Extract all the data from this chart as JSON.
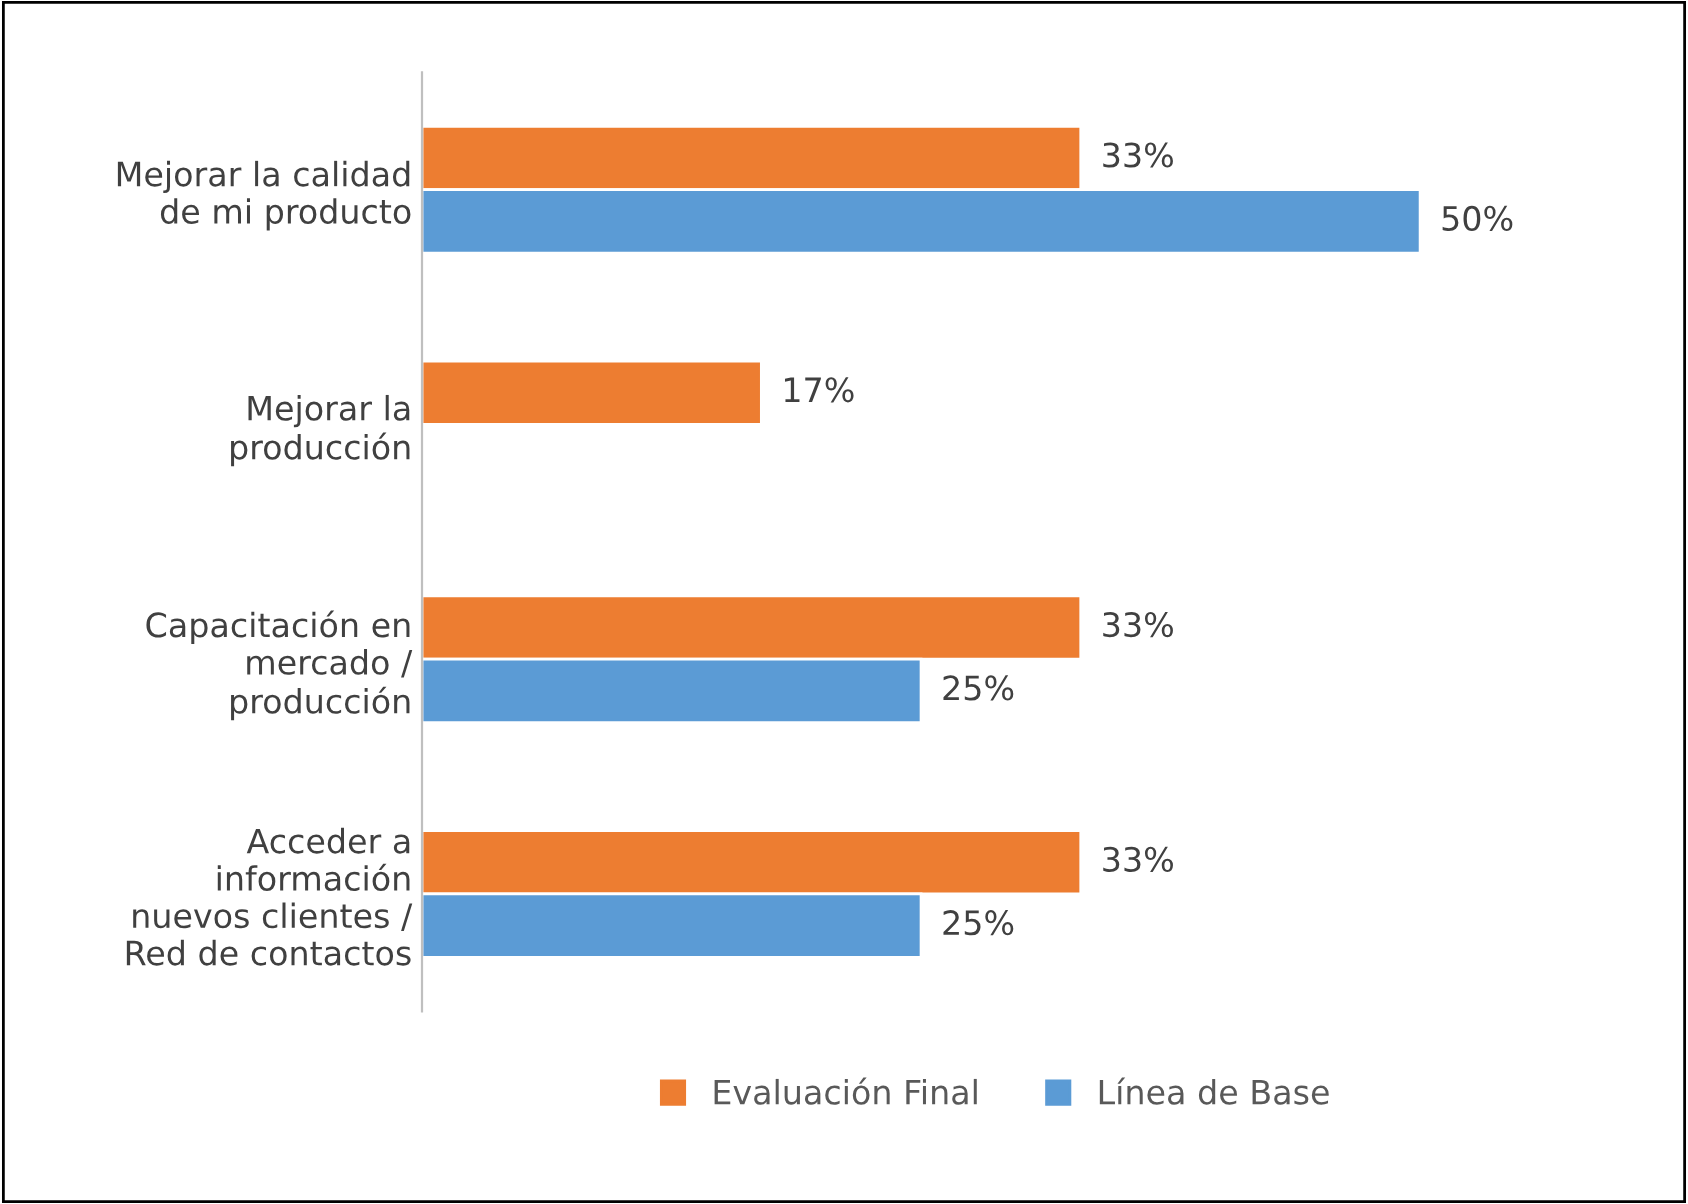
{
  "chart_data": {
    "type": "bar",
    "orientation": "horizontal",
    "data_labels": true,
    "categories": [
      "Mejorar la calidad\nde mi producto",
      "Mejorar la\nproducción",
      "Capacitación en\nmercado /\nproducción",
      "Acceder a\ninformación\nnuevos clientes /\nRed de contactos"
    ],
    "series": [
      {
        "name": "Evaluación Final",
        "color": "#ed7d31",
        "values": [
          33,
          17,
          33,
          33
        ],
        "value_labels": [
          "33%",
          "17%",
          "33%",
          "33%"
        ]
      },
      {
        "name": "Línea de Base",
        "color": "#5b9bd5",
        "values": [
          50,
          null,
          25,
          25
        ],
        "value_labels": [
          "50%",
          null,
          "25%",
          "25%"
        ]
      }
    ],
    "legend": "bottom",
    "grid": false
  }
}
